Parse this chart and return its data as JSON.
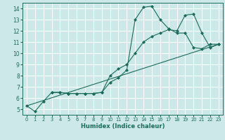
{
  "xlabel": "Humidex (Indice chaleur)",
  "background_color": "#cce8e8",
  "grid_color": "#ffffff",
  "line_color": "#1a6b5a",
  "xlim": [
    -0.5,
    23.5
  ],
  "ylim": [
    4.5,
    14.5
  ],
  "xticks": [
    0,
    1,
    2,
    3,
    4,
    5,
    6,
    7,
    8,
    9,
    10,
    11,
    12,
    13,
    14,
    15,
    16,
    17,
    18,
    19,
    20,
    21,
    22,
    23
  ],
  "yticks": [
    5,
    6,
    7,
    8,
    9,
    10,
    11,
    12,
    13,
    14
  ],
  "line1_x": [
    0,
    1,
    2,
    3,
    4,
    5,
    6,
    7,
    8,
    9,
    10,
    11,
    12,
    13,
    14,
    15,
    16,
    17,
    18,
    19,
    20,
    21,
    22,
    23
  ],
  "line1_y": [
    5.3,
    4.8,
    5.7,
    6.5,
    6.5,
    6.4,
    6.4,
    6.4,
    6.4,
    6.5,
    7.4,
    7.8,
    8.5,
    13.0,
    14.1,
    14.2,
    13.0,
    12.2,
    11.8,
    11.8,
    10.5,
    10.4,
    10.8,
    10.8
  ],
  "line2_x": [
    3,
    4,
    5,
    6,
    7,
    8,
    9,
    10,
    11,
    12,
    13,
    14,
    15,
    16,
    17,
    18,
    19,
    20,
    21,
    22,
    23
  ],
  "line2_y": [
    6.5,
    6.5,
    6.4,
    6.4,
    6.4,
    6.4,
    6.5,
    8.0,
    8.6,
    9.0,
    10.0,
    11.0,
    11.5,
    11.8,
    12.1,
    12.0,
    13.4,
    13.5,
    11.8,
    10.5,
    10.8
  ],
  "line3_x": [
    0,
    23
  ],
  "line3_y": [
    5.3,
    10.8
  ],
  "marker_style": "D",
  "marker_size": 2.0,
  "line_width": 0.8
}
